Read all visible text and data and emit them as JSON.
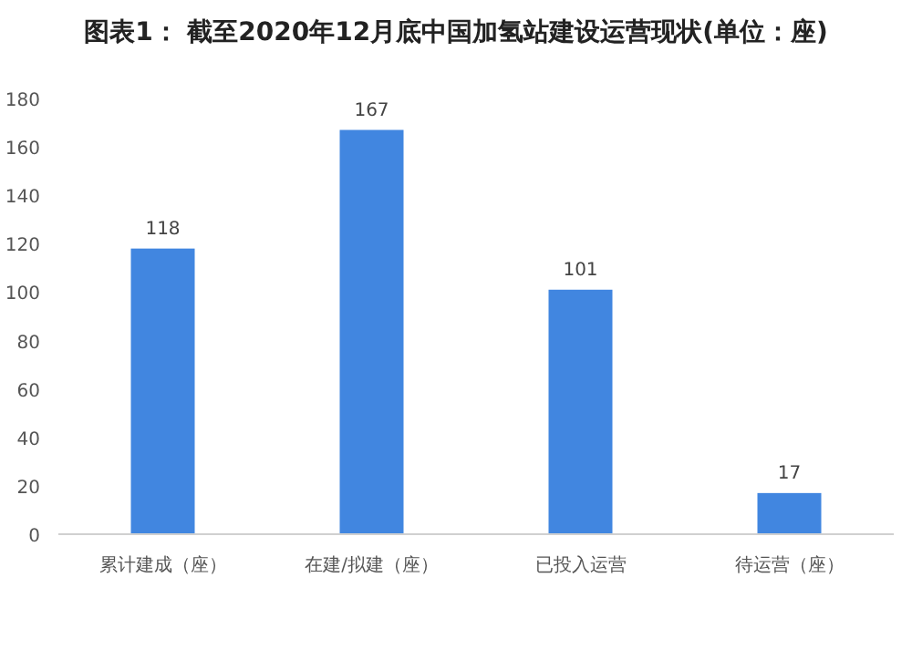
{
  "chart_data": {
    "type": "bar",
    "title": "图表1： 截至2020年12月底中国加氢站建设运营现状(单位：座)",
    "categories": [
      "累计建成（座）",
      "在建/拟建（座）",
      "已投入运营",
      "待运营（座）"
    ],
    "values": [
      118,
      167,
      101,
      17
    ],
    "color": "#4186e0",
    "ylim": [
      0,
      180
    ],
    "yticks": [
      0,
      20,
      40,
      60,
      80,
      100,
      120,
      140,
      160,
      180
    ],
    "data_labels": true,
    "grid": false,
    "legend": false
  }
}
